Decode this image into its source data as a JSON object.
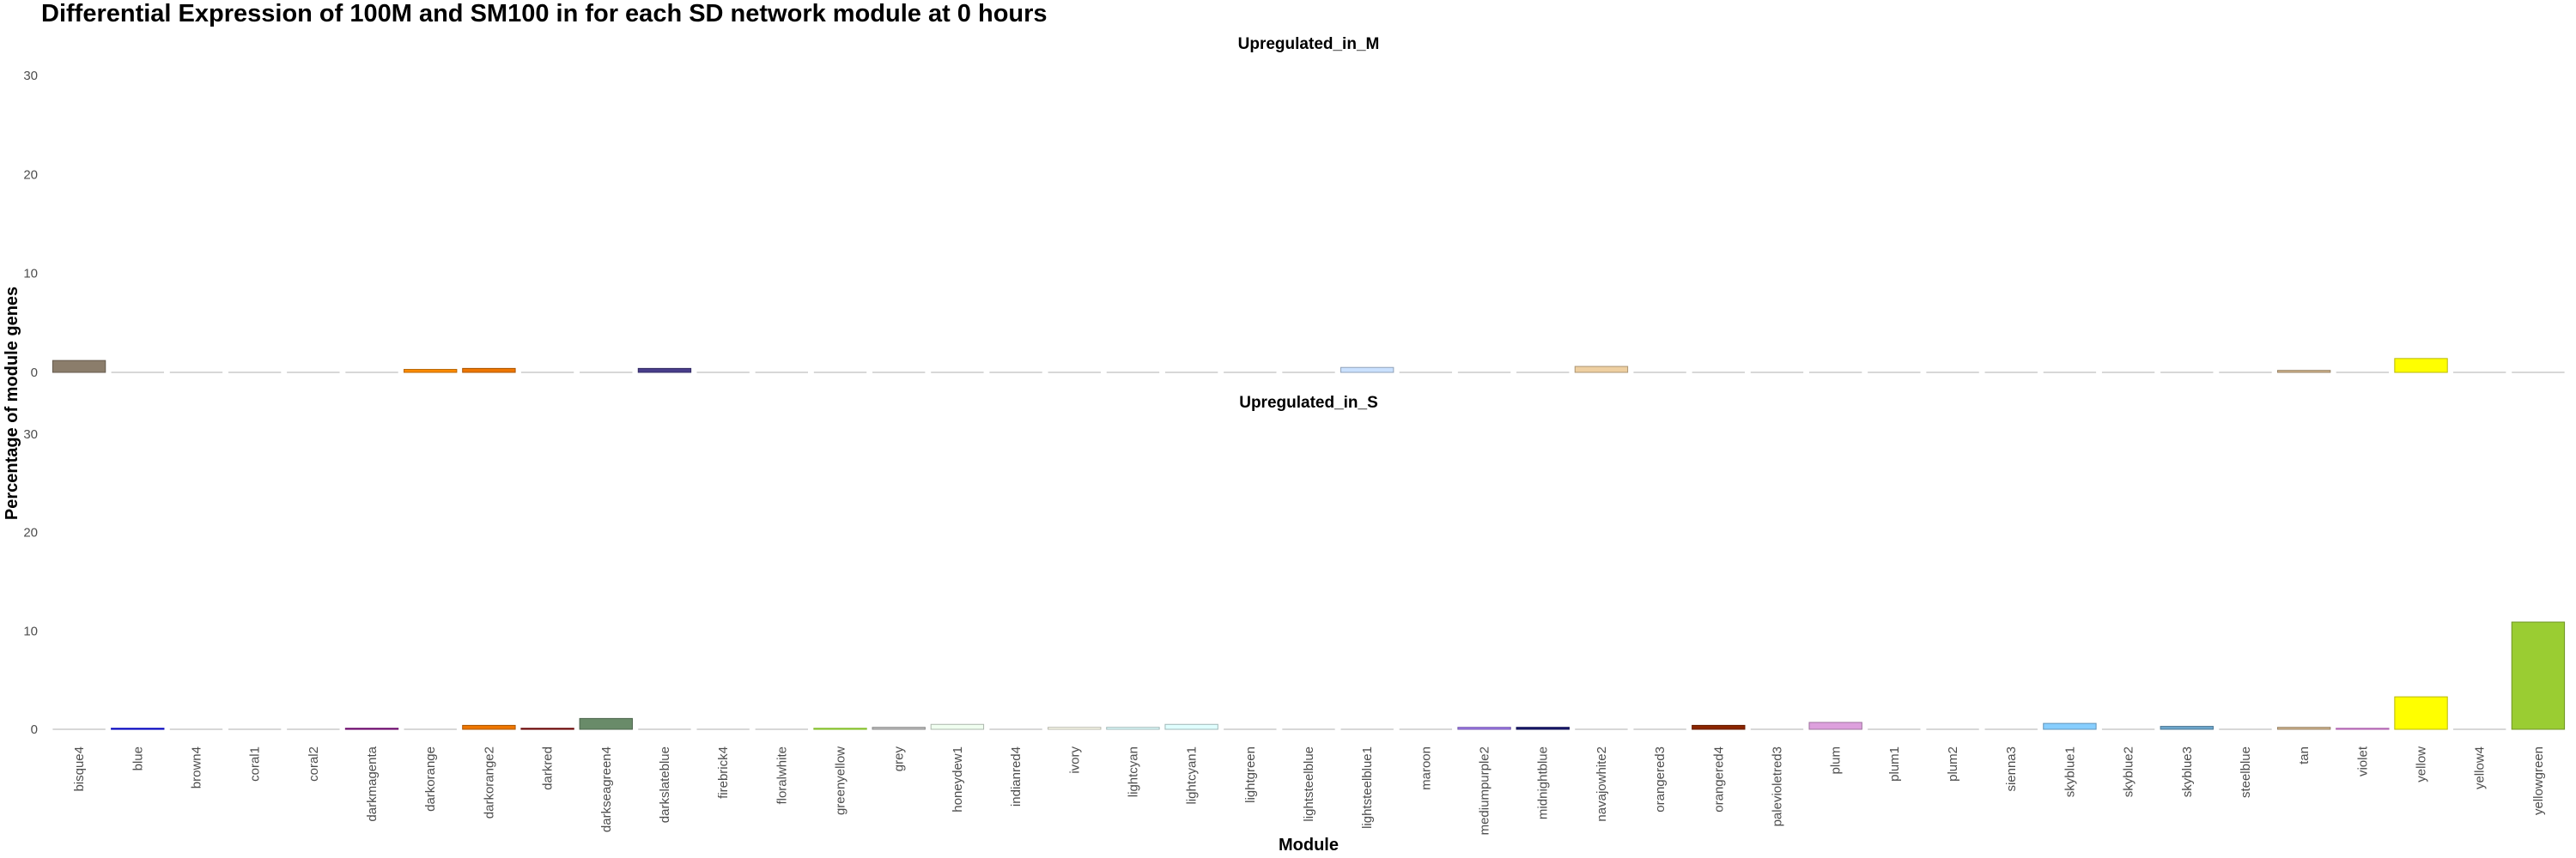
{
  "chart_data": {
    "type": "bar",
    "title": "Differential Expression of 100M and SM100 in for each SD network module at 0 hours",
    "xlabel": "Module",
    "ylabel": "Percentage of module genes",
    "ylim": [
      0,
      30
    ],
    "yticks": [
      "0",
      "10",
      "20",
      "30"
    ],
    "grid": false,
    "legend": "none",
    "categories": [
      "bisque4",
      "blue",
      "brown4",
      "coral1",
      "coral2",
      "darkmagenta",
      "darkorange",
      "darkorange2",
      "darkred",
      "darkseagreen4",
      "darkslateblue",
      "firebrick4",
      "floralwhite",
      "greenyellow",
      "grey",
      "honeydew1",
      "indianred4",
      "ivory",
      "lightcyan",
      "lightcyan1",
      "lightgreen",
      "lightsteelblue",
      "lightsteelblue1",
      "maroon",
      "mediumpurple2",
      "midnightblue",
      "navajowhite2",
      "orangered3",
      "orangered4",
      "palevioletred3",
      "plum",
      "plum1",
      "plum2",
      "sienna3",
      "skyblue1",
      "skyblue2",
      "skyblue3",
      "steelblue",
      "tan",
      "violet",
      "yellow",
      "yellow4",
      "yellowgreen"
    ],
    "colors": [
      "#8B7D6B",
      "#0000FF",
      "#8B2323",
      "#FF7256",
      "#EE6A50",
      "#8B008B",
      "#FF8C00",
      "#EE7600",
      "#8B0000",
      "#698B69",
      "#483D8B",
      "#8B1A1A",
      "#FFFAF0",
      "#ADFF2F",
      "#BEBEBE",
      "#F0FFF0",
      "#8B3A3A",
      "#FFFFF0",
      "#E0FFFF",
      "#E0FFFF",
      "#90EE90",
      "#B0C4DE",
      "#CAE1FF",
      "#B03060",
      "#9F79EE",
      "#191970",
      "#EECFA1",
      "#CD3700",
      "#8B2500",
      "#CD6889",
      "#DDA0DD",
      "#FFBBFF",
      "#EEAEEE",
      "#CD6839",
      "#87CEFF",
      "#7EC0EE",
      "#6CA6CD",
      "#4682B4",
      "#D2B48C",
      "#EE82EE",
      "#FFFF00",
      "#8B8B00",
      "#9ACD32"
    ],
    "series": [
      {
        "name": "Upregulated_in_M",
        "values": [
          1.2,
          0,
          0,
          0,
          0,
          0,
          0.3,
          0.4,
          0,
          0,
          0.4,
          0,
          0,
          0,
          0,
          0,
          0,
          0,
          0,
          0,
          0,
          0,
          0.5,
          0,
          0,
          0,
          0.6,
          0,
          0,
          0,
          0,
          0,
          0,
          0,
          0,
          0,
          0,
          0,
          0.2,
          0,
          1.4,
          0,
          0
        ]
      },
      {
        "name": "Upregulated_in_S",
        "values": [
          0,
          0.1,
          0,
          0,
          0,
          0.1,
          0,
          0.4,
          0.1,
          1.1,
          0,
          0,
          0,
          0.1,
          0.2,
          0.5,
          0,
          0.2,
          0.2,
          0.5,
          0,
          0,
          0,
          0,
          0.2,
          0.2,
          0,
          0,
          0.4,
          0,
          0.7,
          0,
          0,
          0,
          0.6,
          0,
          0.3,
          0,
          0.2,
          0.1,
          3.3,
          0,
          10.9
        ]
      }
    ]
  }
}
